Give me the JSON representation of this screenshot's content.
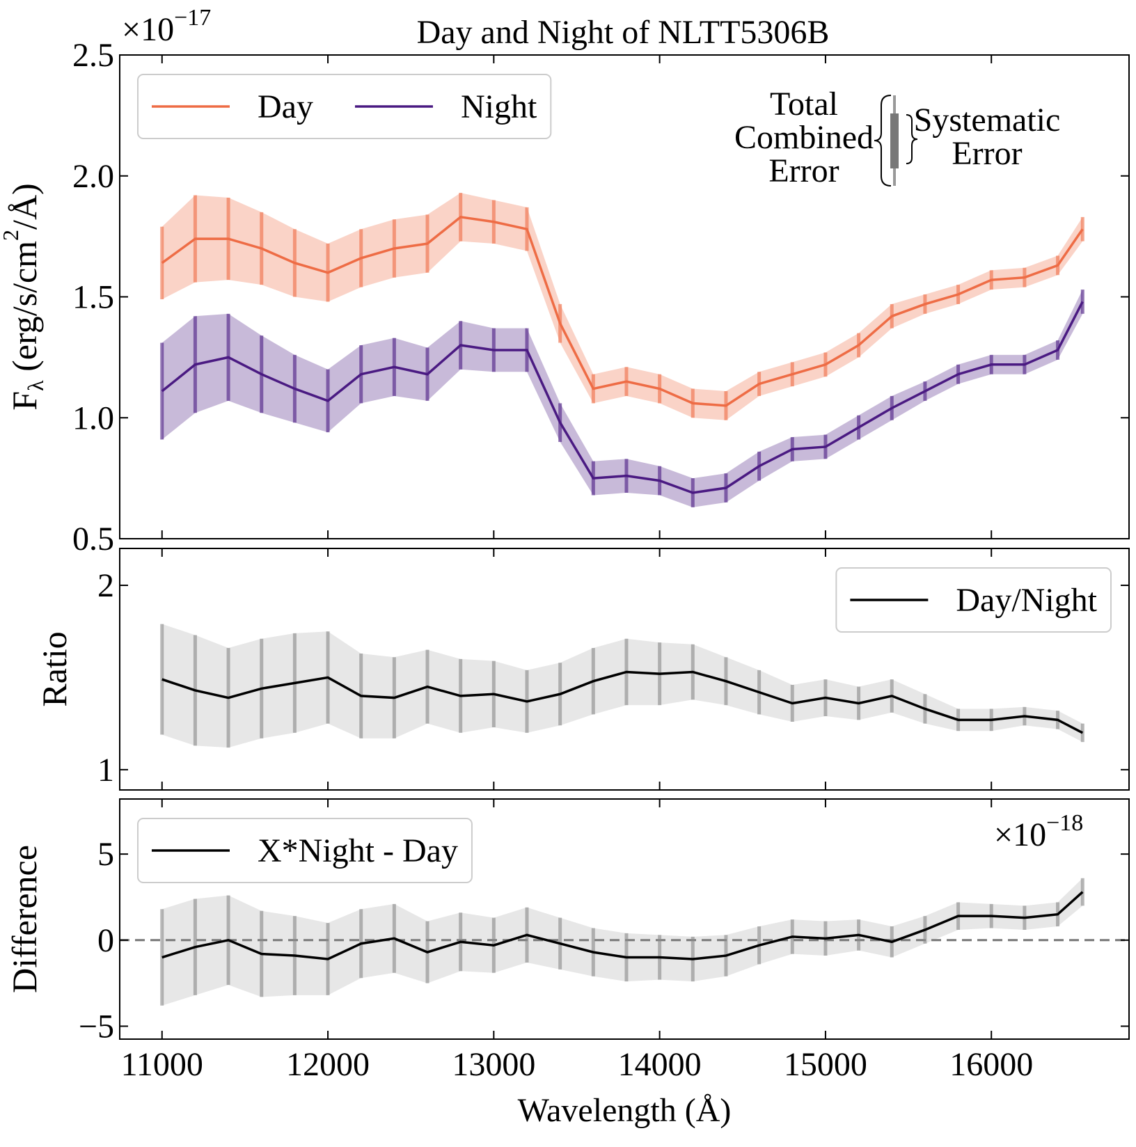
{
  "chart_data": [
    {
      "type": "line",
      "title": "Day and Night of NLTT5306B",
      "offset_text": {
        "base": "×10",
        "exponent": "−17"
      },
      "ylabel": [
        "F",
        "λ",
        " (erg/s/cm",
        "2",
        "/Å)"
      ],
      "annotation": {
        "left": [
          "Total",
          "Combined",
          "Error"
        ],
        "right": [
          "Systematic",
          "Error"
        ]
      },
      "x": [
        11000,
        11200,
        11400,
        11600,
        11800,
        12000,
        12200,
        12400,
        12600,
        12800,
        13000,
        13200,
        13400,
        13600,
        13800,
        14000,
        14200,
        14400,
        14600,
        14800,
        15000,
        15200,
        15400,
        15600,
        15800,
        16000,
        16200,
        16400,
        16550
      ],
      "series": [
        {
          "name": "Day",
          "color": "#ee6c45",
          "values": [
            1.64,
            1.74,
            1.74,
            1.7,
            1.64,
            1.6,
            1.66,
            1.7,
            1.72,
            1.83,
            1.81,
            1.78,
            1.39,
            1.12,
            1.15,
            1.12,
            1.06,
            1.05,
            1.14,
            1.18,
            1.22,
            1.3,
            1.42,
            1.47,
            1.51,
            1.57,
            1.58,
            1.63,
            1.78
          ],
          "errors": [
            0.15,
            0.18,
            0.17,
            0.15,
            0.14,
            0.12,
            0.12,
            0.12,
            0.12,
            0.1,
            0.09,
            0.09,
            0.08,
            0.06,
            0.06,
            0.06,
            0.06,
            0.06,
            0.05,
            0.05,
            0.05,
            0.05,
            0.05,
            0.04,
            0.04,
            0.04,
            0.04,
            0.04,
            0.05
          ]
        },
        {
          "name": "Night",
          "color": "#4a1a82",
          "values": [
            1.11,
            1.22,
            1.25,
            1.18,
            1.12,
            1.07,
            1.18,
            1.21,
            1.18,
            1.3,
            1.28,
            1.28,
            0.98,
            0.75,
            0.76,
            0.74,
            0.69,
            0.71,
            0.8,
            0.87,
            0.88,
            0.96,
            1.04,
            1.11,
            1.18,
            1.22,
            1.22,
            1.28,
            1.48
          ],
          "errors": [
            0.2,
            0.2,
            0.18,
            0.16,
            0.14,
            0.13,
            0.12,
            0.12,
            0.11,
            0.1,
            0.09,
            0.09,
            0.08,
            0.07,
            0.07,
            0.06,
            0.06,
            0.06,
            0.06,
            0.05,
            0.05,
            0.05,
            0.05,
            0.04,
            0.04,
            0.04,
            0.04,
            0.04,
            0.05
          ]
        }
      ],
      "xlim": [
        10745,
        16830
      ],
      "xticks": [
        11000,
        12000,
        13000,
        14000,
        15000,
        16000
      ],
      "ylim": [
        0.5,
        2.5
      ],
      "yticks": [
        0.5,
        {
          "value": 1,
          "label": "1.0"
        },
        1.5,
        {
          "value": 2,
          "label": "2.0"
        },
        2.5
      ],
      "legend": "upper left"
    },
    {
      "type": "line",
      "ylabel": [
        "Ratio"
      ],
      "x": [
        11000,
        11200,
        11400,
        11600,
        11800,
        12000,
        12200,
        12400,
        12600,
        12800,
        13000,
        13200,
        13400,
        13600,
        13800,
        14000,
        14200,
        14400,
        14600,
        14800,
        15000,
        15200,
        15400,
        15600,
        15800,
        16000,
        16200,
        16400,
        16550
      ],
      "series": [
        {
          "name": "Day/Night",
          "color": "#000000",
          "values": [
            1.49,
            1.43,
            1.39,
            1.44,
            1.47,
            1.5,
            1.4,
            1.39,
            1.45,
            1.4,
            1.41,
            1.37,
            1.41,
            1.48,
            1.53,
            1.52,
            1.53,
            1.48,
            1.42,
            1.36,
            1.39,
            1.36,
            1.4,
            1.33,
            1.27,
            1.27,
            1.29,
            1.27,
            1.2
          ],
          "errors": [
            0.3,
            0.3,
            0.27,
            0.27,
            0.27,
            0.25,
            0.23,
            0.22,
            0.2,
            0.2,
            0.18,
            0.17,
            0.17,
            0.18,
            0.18,
            0.17,
            0.15,
            0.13,
            0.12,
            0.1,
            0.1,
            0.09,
            0.09,
            0.08,
            0.06,
            0.06,
            0.05,
            0.05,
            0.05
          ]
        }
      ],
      "xlim": [
        10745,
        16830
      ],
      "xticks": [
        11000,
        12000,
        13000,
        14000,
        15000,
        16000
      ],
      "ylim": [
        0.89,
        2.2
      ],
      "yticks": [
        1,
        2
      ],
      "legend": "upper right"
    },
    {
      "type": "line",
      "ylabel": [
        "Difference"
      ],
      "xlabel": "Wavelength (Å)",
      "offset_text": {
        "base": "×10",
        "exponent": "−18"
      },
      "x": [
        11000,
        11200,
        11400,
        11600,
        11800,
        12000,
        12200,
        12400,
        12600,
        12800,
        13000,
        13200,
        13400,
        13600,
        13800,
        14000,
        14200,
        14400,
        14600,
        14800,
        15000,
        15200,
        15400,
        15600,
        15800,
        16000,
        16200,
        16400,
        16550
      ],
      "series": [
        {
          "name": "X*Night - Day",
          "color": "#000000",
          "values": [
            -1.0,
            -0.4,
            0.0,
            -0.8,
            -0.9,
            -1.1,
            -0.2,
            0.1,
            -0.7,
            -0.1,
            -0.3,
            0.3,
            -0.2,
            -0.7,
            -1.0,
            -1.0,
            -1.1,
            -0.9,
            -0.3,
            0.2,
            0.1,
            0.3,
            -0.1,
            0.6,
            1.4,
            1.4,
            1.3,
            1.5,
            2.8
          ],
          "errors": [
            2.8,
            2.8,
            2.6,
            2.5,
            2.3,
            2.1,
            2.0,
            2.0,
            1.8,
            1.7,
            1.6,
            1.6,
            1.5,
            1.4,
            1.4,
            1.3,
            1.3,
            1.2,
            1.1,
            1.0,
            1.0,
            0.9,
            0.9,
            0.8,
            0.8,
            0.7,
            0.7,
            0.7,
            0.8
          ]
        }
      ],
      "xlim": [
        10745,
        16830
      ],
      "xticks": [
        11000,
        12000,
        13000,
        14000,
        15000,
        16000
      ],
      "ylim": [
        -5.75,
        8.2
      ],
      "yticks": [
        {
          "value": -5,
          "label": "−5"
        },
        0,
        5
      ],
      "hline": 0,
      "legend": "upper left"
    }
  ]
}
